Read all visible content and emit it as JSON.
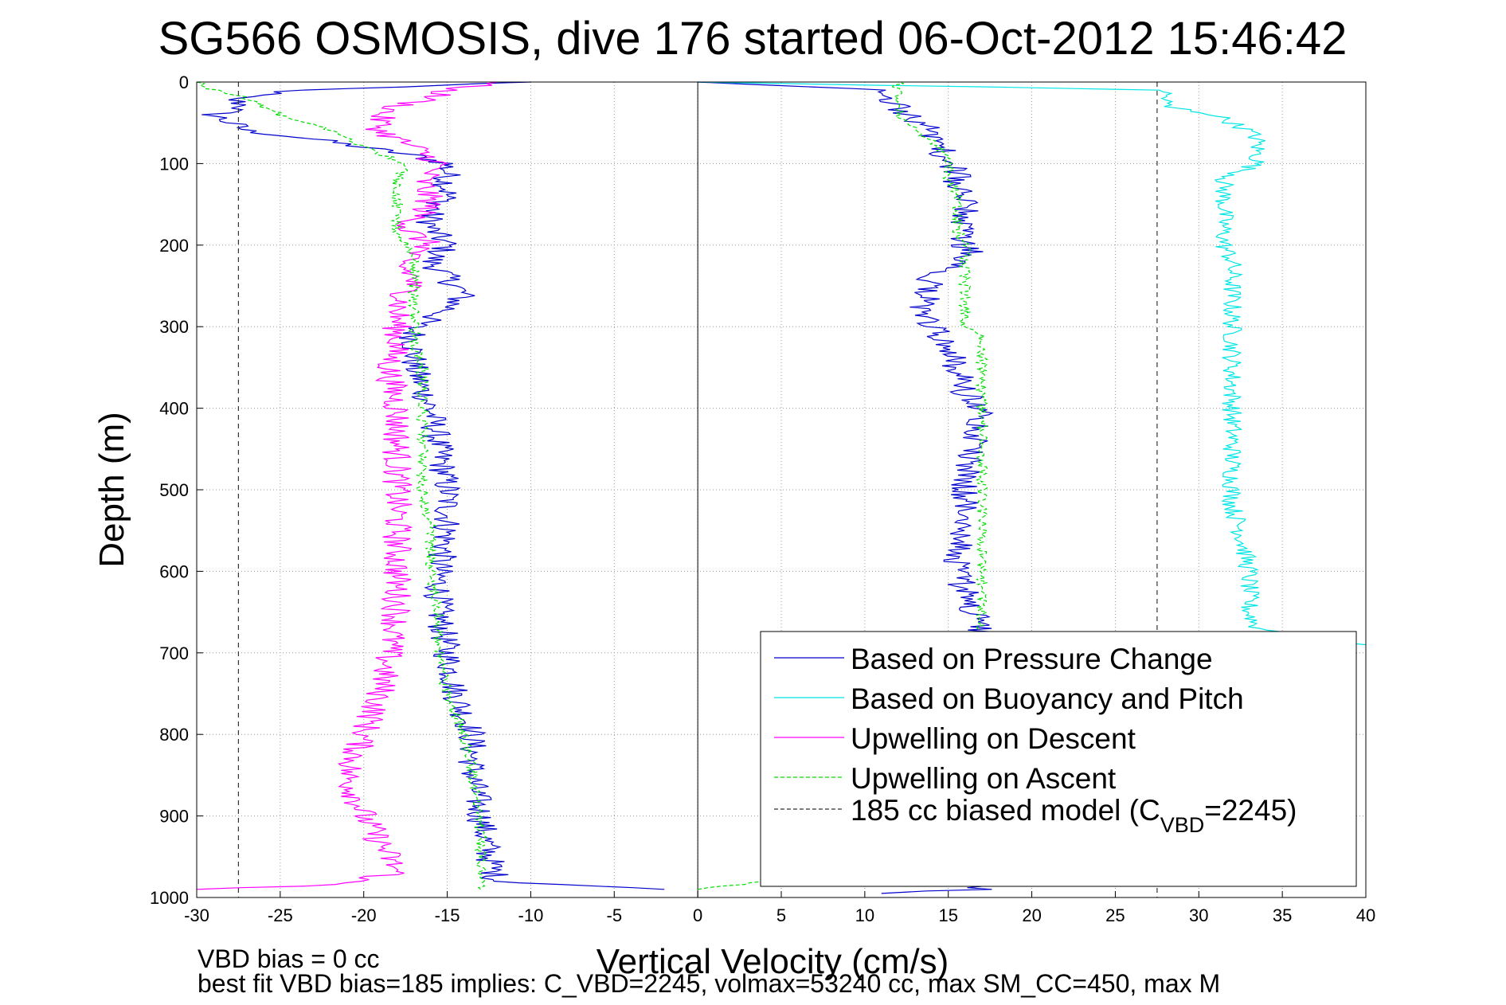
{
  "chart_data": {
    "type": "line",
    "title": "SG566 OSMOSIS, dive 176 started 06-Oct-2012 15:46:42",
    "xlabel": "Vertical Velocity (cm/s)",
    "ylabel": "Depth (m)",
    "xlim": [
      -30,
      40
    ],
    "ylim": [
      1000,
      0
    ],
    "y_reversed": true,
    "grid": true,
    "legend_position": "bottom-right",
    "xticks": [
      "-30",
      "-25",
      "-20",
      "-15",
      "-10",
      "-5",
      "0",
      "5",
      "10",
      "15",
      "20",
      "25",
      "30",
      "35",
      "40"
    ],
    "yticks": [
      "0",
      "100",
      "200",
      "300",
      "400",
      "500",
      "600",
      "700",
      "800",
      "900",
      "1000"
    ],
    "series": [
      {
        "name": "Based on Pressure Change",
        "color": "#0000cc",
        "style": "solid",
        "depth": [
          0,
          10,
          20,
          30,
          40,
          50,
          60,
          70,
          80,
          90,
          100,
          120,
          140,
          160,
          180,
          200,
          220,
          240,
          260,
          280,
          300,
          320,
          350,
          400,
          450,
          500,
          550,
          600,
          650,
          700,
          750,
          800,
          850,
          900,
          950,
          980,
          990
        ],
        "values": [
          -10,
          -24,
          -28,
          -27,
          -29,
          -28,
          -27,
          -23,
          -20,
          -17,
          -15,
          -15,
          -15,
          -16,
          -16,
          -15,
          -16,
          -15,
          -14,
          -15,
          -17,
          -17,
          -17,
          -16,
          -15.5,
          -15,
          -15,
          -15.5,
          -15.5,
          -15,
          -14.5,
          -13.5,
          -13.5,
          -13,
          -12.5,
          -12,
          -2
        ]
      },
      {
        "name": "Based on Pressure Change",
        "color": "#0000cc",
        "style": "solid",
        "depth": [
          995,
          990,
          980,
          950,
          900,
          850,
          800,
          760,
          720,
          700,
          680,
          650,
          600,
          550,
          500,
          450,
          420,
          400,
          380,
          350,
          330,
          310,
          300,
          290,
          280,
          260,
          240,
          225,
          210,
          190,
          170,
          150,
          130,
          110,
          100,
          80,
          60,
          45,
          30,
          20,
          10,
          0
        ],
        "values": [
          11,
          17,
          17,
          17,
          17,
          17,
          17,
          17,
          17,
          17,
          17,
          16.5,
          15.5,
          16,
          16,
          16.5,
          17,
          17,
          16,
          15.5,
          15,
          14.5,
          14,
          13.5,
          13.5,
          13.8,
          14,
          15.5,
          16.5,
          15.5,
          16,
          16,
          15.5,
          15.5,
          15,
          14.5,
          14,
          13,
          12,
          11,
          11,
          0
        ]
      },
      {
        "name": "Based on Buoyancy and Pitch",
        "color": "#00e5e5",
        "style": "solid",
        "depth": [
          0,
          10,
          20,
          30,
          40,
          50,
          60,
          70,
          80,
          100,
          120,
          150,
          180,
          200,
          220,
          240,
          260,
          280,
          300,
          320,
          350,
          400,
          420,
          450,
          500,
          520,
          550,
          600,
          650,
          670,
          690
        ],
        "values": [
          0,
          28,
          28,
          28,
          31,
          32,
          33,
          33.5,
          33.5,
          33.5,
          31.5,
          31.5,
          31.5,
          31.5,
          32,
          32,
          32,
          32,
          32,
          32,
          32,
          32,
          32,
          32,
          32,
          32,
          32.5,
          33,
          33,
          33.5,
          40
        ]
      },
      {
        "name": "Upwelling on Descent",
        "color": "#ff00ff",
        "style": "solid",
        "depth": [
          0,
          10,
          20,
          30,
          40,
          60,
          80,
          100,
          120,
          150,
          180,
          200,
          220,
          240,
          260,
          280,
          300,
          320,
          350,
          400,
          450,
          500,
          550,
          600,
          650,
          700,
          750,
          800,
          850,
          900,
          950,
          970,
          985,
          990
        ],
        "values": [
          -12,
          -15,
          -16,
          -18,
          -19,
          -19,
          -17,
          -15.5,
          -16.5,
          -16,
          -17.5,
          -16,
          -18,
          -17,
          -17.5,
          -18,
          -18,
          -18,
          -18.5,
          -18,
          -18,
          -18,
          -18,
          -18,
          -18,
          -18.5,
          -19,
          -20,
          -21,
          -20,
          -18.5,
          -18,
          -22,
          -30
        ]
      },
      {
        "name": "Upwelling on Ascent",
        "color": "#00dd00",
        "style": "dashed",
        "depth": [
          990,
          980,
          950,
          900,
          850,
          800,
          750,
          700,
          650,
          600,
          550,
          500,
          450,
          400,
          350,
          320,
          300,
          280,
          260,
          240,
          220,
          200,
          180,
          160,
          140,
          120,
          100,
          80,
          60,
          40,
          20,
          10,
          0
        ],
        "values": [
          -13,
          -13,
          -13,
          -13,
          -13.5,
          -14,
          -15,
          -15.5,
          -15.5,
          -16,
          -16,
          -16.5,
          -16.5,
          -16.5,
          -16.5,
          -17,
          -17,
          -17,
          -17,
          -17,
          -17,
          -17.5,
          -18,
          -18,
          -18,
          -18,
          -17.5,
          -20,
          -22,
          -25,
          -27,
          -29,
          -30
        ]
      },
      {
        "name": "Upwelling on Ascent",
        "color": "#00dd00",
        "style": "dashed",
        "depth": [
          990,
          950,
          900,
          850,
          800,
          750,
          700,
          680,
          650,
          600,
          550,
          500,
          450,
          400,
          380,
          350,
          320,
          310,
          300,
          280,
          260,
          240,
          220,
          200,
          180,
          160,
          140,
          120,
          100,
          80,
          60,
          40,
          20,
          10,
          0
        ],
        "values": [
          0,
          17,
          17,
          17,
          17,
          17,
          17,
          17,
          17,
          17,
          17,
          17,
          17,
          17,
          17,
          17,
          17,
          17,
          16,
          16,
          16,
          16,
          16,
          16,
          15.5,
          15.5,
          15.5,
          15,
          15,
          14.5,
          13,
          12,
          12,
          12,
          12
        ]
      },
      {
        "name": "185 cc biased model (C",
        "color": "#333333",
        "style": "dashed",
        "depth": [
          0,
          1000
        ],
        "values": [
          -27.5,
          -27.5
        ]
      },
      {
        "name": "185 cc biased model (C",
        "color": "#333333",
        "style": "dashed",
        "depth": [
          0,
          1000
        ],
        "values": [
          27.5,
          27.5
        ]
      }
    ],
    "legend": [
      {
        "label": "Based on Pressure Change",
        "color": "#0000cc",
        "style": "solid"
      },
      {
        "label": "Based on Buoyancy and Pitch",
        "color": "#00e5e5",
        "style": "solid"
      },
      {
        "label": "Upwelling on Descent",
        "color": "#ff00ff",
        "style": "solid"
      },
      {
        "label": "Upwelling on Ascent",
        "color": "#00dd00",
        "style": "dashed"
      },
      {
        "label": "185 cc biased model (C",
        "sub": "VBD",
        "suffix": "=2245)",
        "color": "#333333",
        "style": "dashed"
      }
    ],
    "zero_line_color": "#000000"
  },
  "footer": {
    "line1": "VBD bias = 0 cc",
    "line2": "best fit VBD bias=185 implies: C_VBD=2245, volmax=53240 cc, max SM_CC=450, max M"
  }
}
